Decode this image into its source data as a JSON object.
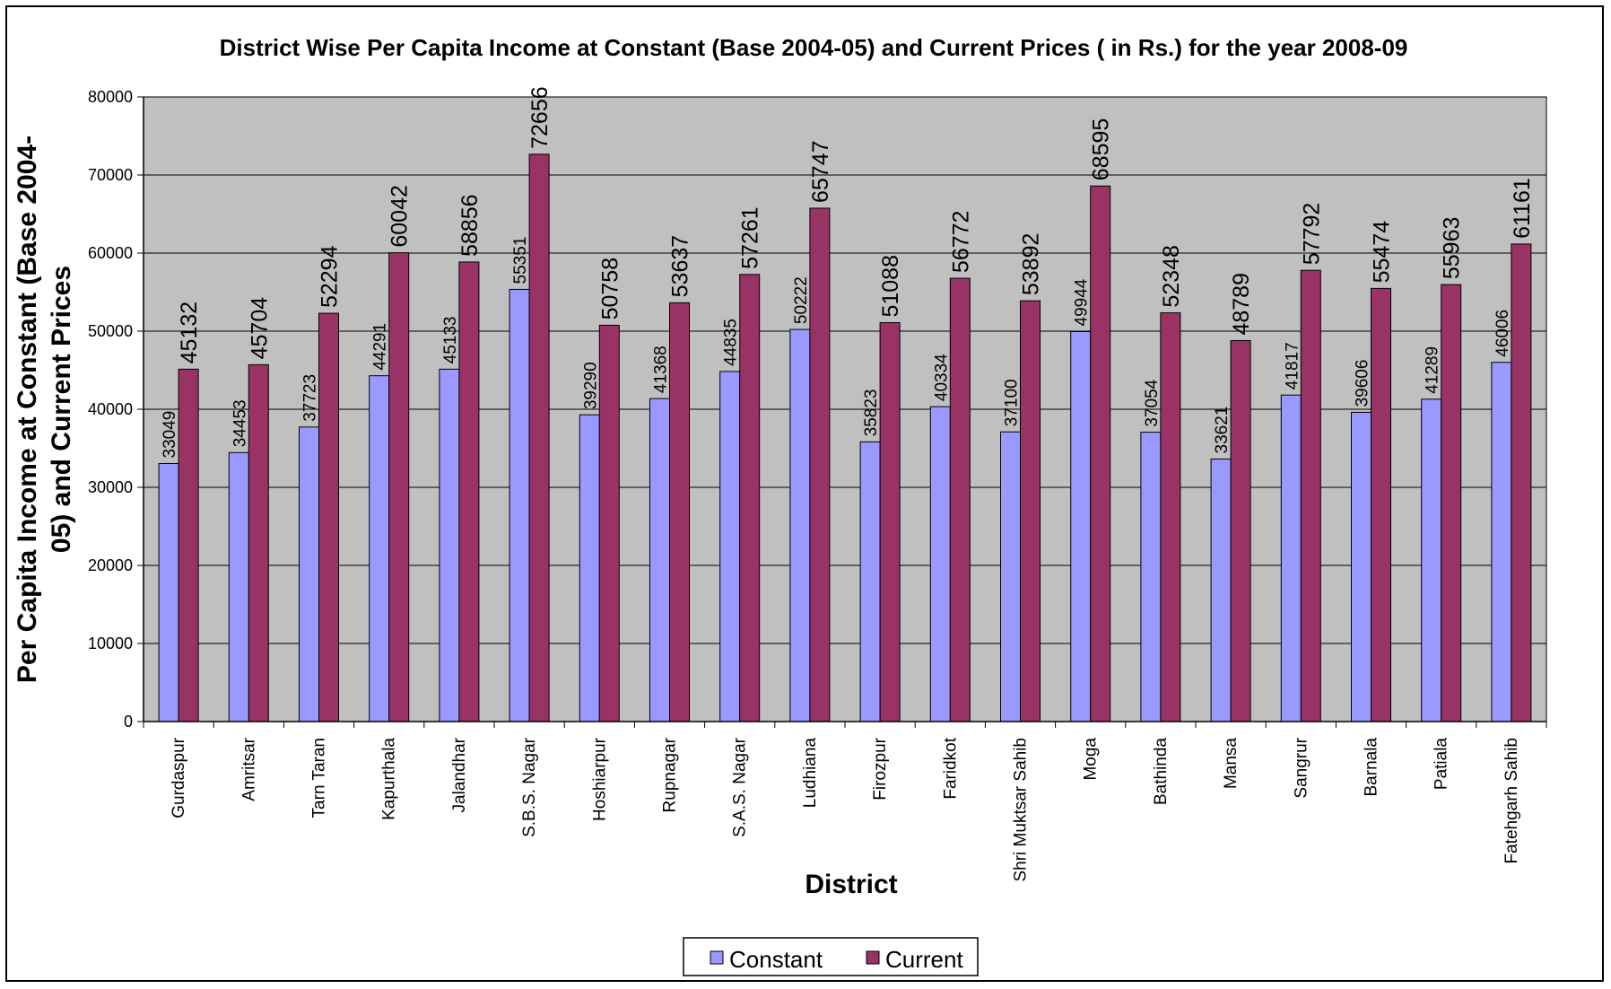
{
  "chart_data": {
    "type": "bar",
    "title": "District Wise Per Capita Income at Constant (Base 2004-05) and Current Prices ( in Rs.) for the year 2008-09",
    "xlabel": "District",
    "ylabel_lines": [
      "Per Capita Income at Constant (Base 2004-",
      "05) and Current Prices"
    ],
    "ylim": [
      0,
      80000
    ],
    "yticks": [
      "0",
      "10000",
      "20000",
      "30000",
      "40000",
      "50000",
      "60000",
      "70000",
      "80000"
    ],
    "grid": true,
    "legend_position": "bottom",
    "plot_background": "#c0c0c0",
    "categories": [
      "Gurdaspur",
      "Amritsar",
      "Tarn Taran",
      "Kapurthala",
      "Jalandhar",
      "S.B.S. Nagar",
      "Hoshiarpur",
      "Rupnagar",
      "S.A.S. Nagar",
      "Ludhiana",
      "Firozpur",
      "Faridkot",
      "Shri Muktsar Sahib",
      "Moga",
      "Bathinda",
      "Mansa",
      "Sangrur",
      "Barnala",
      "Patiala",
      "Fatehgarh Sahib"
    ],
    "series": [
      {
        "name": "Constant",
        "color": "#9999ff",
        "values": [
          33049,
          34453,
          37723,
          44291,
          45133,
          55351,
          39290,
          41368,
          44835,
          50222,
          35823,
          40334,
          37100,
          49944,
          37054,
          33621,
          41817,
          39606,
          41289,
          46006
        ]
      },
      {
        "name": "Current",
        "color": "#993366",
        "values": [
          45132,
          45704,
          52294,
          60042,
          58856,
          72656,
          50758,
          53637,
          57261,
          65747,
          51088,
          56772,
          53892,
          68595,
          52348,
          48789,
          57792,
          55474,
          55963,
          61161
        ]
      }
    ]
  }
}
